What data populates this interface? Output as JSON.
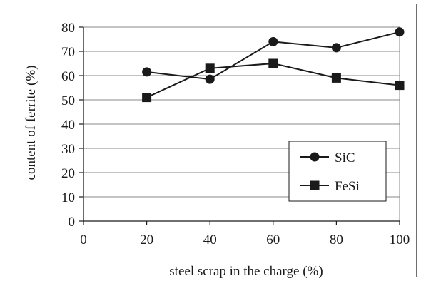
{
  "chart_data": {
    "type": "line",
    "x": [
      20,
      40,
      60,
      80,
      100
    ],
    "xlabel": "steel scrap in the charge (%)",
    "ylabel": "content of ferrite (%)",
    "xlim": [
      0,
      100
    ],
    "ylim": [
      0,
      80
    ],
    "xticks": [
      0,
      20,
      40,
      60,
      80,
      100
    ],
    "yticks": [
      0,
      10,
      20,
      30,
      40,
      50,
      60,
      70,
      80
    ],
    "grid": "horizontal",
    "legend_position": "bottom-right",
    "series": [
      {
        "name": "SiC",
        "marker": "circle",
        "color": "#1a1a1a",
        "values": [
          61.5,
          58.5,
          74,
          71.5,
          78
        ]
      },
      {
        "name": "FeSi",
        "marker": "square",
        "color": "#1a1a1a",
        "values": [
          51,
          63,
          65,
          59,
          56
        ]
      }
    ]
  }
}
